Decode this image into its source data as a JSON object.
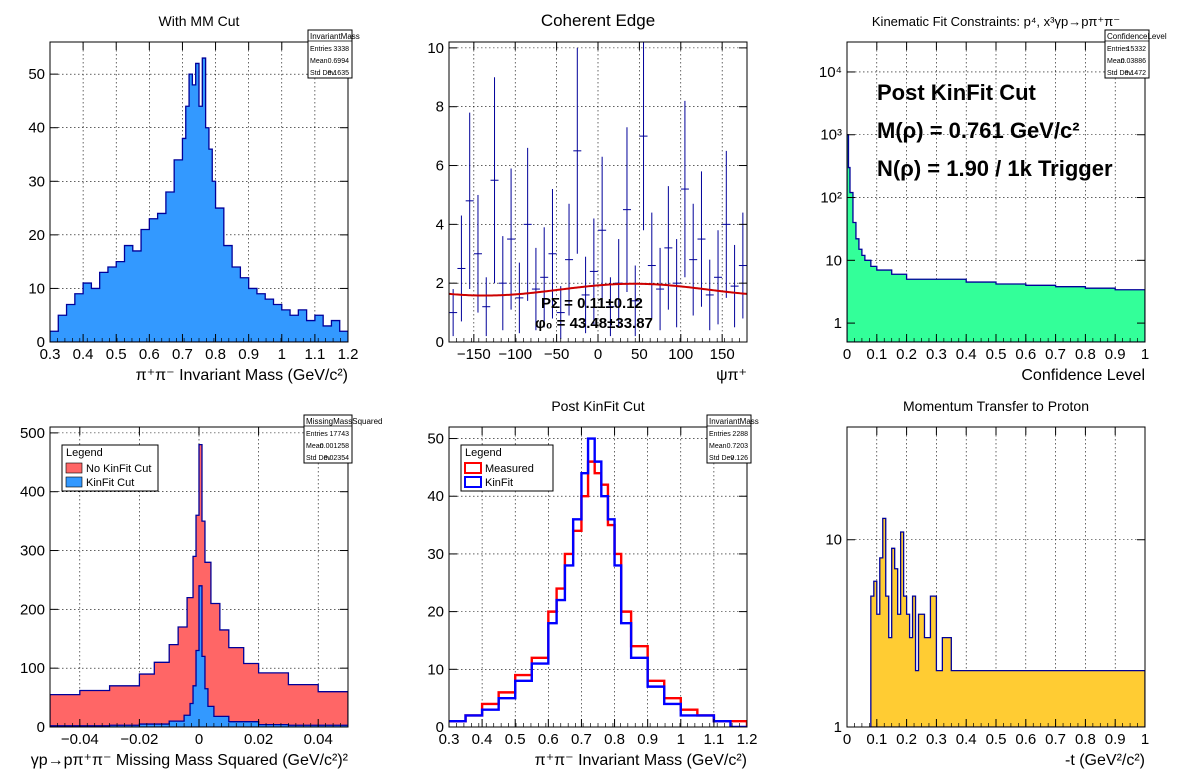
{
  "canvas": {
    "background": "#ffffff"
  },
  "chart_data": [
    {
      "id": "p1",
      "type": "bar",
      "title": "With MM Cut",
      "xlabel": "π⁺π⁻ Invariant Mass (GeV/c²)",
      "ylabel": "",
      "xlim": [
        0.3,
        1.2
      ],
      "ylim": [
        0,
        56
      ],
      "xticks": [
        "0.3",
        "0.4",
        "0.5",
        "0.6",
        "0.7",
        "0.8",
        "0.9",
        "1",
        "1.1",
        "1.2"
      ],
      "yticks": [
        "0",
        "10",
        "20",
        "30",
        "40",
        "50"
      ],
      "grid": true,
      "fill_color": "#3399ff",
      "line_color": "#000099",
      "series": [
        {
          "x": [
            0.3,
            0.325,
            0.35,
            0.375,
            0.4,
            0.425,
            0.45,
            0.475,
            0.5,
            0.525,
            0.55,
            0.575,
            0.6,
            0.625,
            0.65,
            0.675,
            0.7,
            0.71,
            0.72,
            0.73,
            0.74,
            0.75,
            0.76,
            0.77,
            0.78,
            0.79,
            0.8,
            0.825,
            0.85,
            0.875,
            0.9,
            0.925,
            0.95,
            0.975,
            1.0,
            1.025,
            1.05,
            1.075,
            1.1,
            1.125,
            1.15,
            1.175,
            1.2
          ],
          "y": [
            2,
            5,
            7,
            9,
            11,
            10,
            13,
            14,
            15,
            18,
            17,
            21,
            23,
            24,
            28,
            34,
            38,
            44,
            50,
            48,
            52,
            44,
            53,
            40,
            36,
            30,
            25,
            18,
            14,
            12,
            10,
            9,
            8,
            7,
            6,
            5,
            6,
            4,
            5,
            3,
            4,
            2,
            1
          ]
        }
      ],
      "stats": {
        "name": "InvariantMass",
        "entries_label": "Entries",
        "entries": "3338",
        "mean_label": "Mean",
        "mean": "0.6994",
        "std_label": "Std Dev",
        "std": "0.1635"
      }
    },
    {
      "id": "p2",
      "type": "scatter",
      "title": "Coherent Edge",
      "xlabel": "ψπ⁺",
      "ylabel": "",
      "xlim": [
        -180,
        180
      ],
      "ylim": [
        0,
        10.2
      ],
      "xticks": [
        "−150",
        "−100",
        "−50",
        "0",
        "50",
        "100",
        "150"
      ],
      "xtick_values": [
        -150,
        -100,
        -50,
        0,
        50,
        100,
        150
      ],
      "yticks": [
        "0",
        "2",
        "4",
        "6",
        "8",
        "10"
      ],
      "ytick_values": [
        0,
        2,
        4,
        6,
        8,
        10
      ],
      "grid": true,
      "marker_color": "#000099",
      "fit_color": "#cc0000",
      "fit": {
        "p0": 1.78,
        "amp": 0.2,
        "phase_deg": 43.48
      },
      "points": {
        "x": [
          -175,
          -165,
          -155,
          -145,
          -135,
          -125,
          -115,
          -105,
          -95,
          -85,
          -75,
          -65,
          -55,
          -45,
          -35,
          -25,
          -15,
          -5,
          5,
          15,
          25,
          35,
          45,
          55,
          65,
          75,
          85,
          95,
          105,
          115,
          125,
          135,
          145,
          155,
          165,
          175
        ],
        "y": [
          1.0,
          2.5,
          4.8,
          3.0,
          1.2,
          5.5,
          2.0,
          3.5,
          1.5,
          4.0,
          1.8,
          2.2,
          3.0,
          1.0,
          2.8,
          6.5,
          1.6,
          2.4,
          3.8,
          1.2,
          2.0,
          4.5,
          1.4,
          7.0,
          2.6,
          1.8,
          3.2,
          2.0,
          5.2,
          2.8,
          3.5,
          1.6,
          2.2,
          4.0,
          1.9,
          2.6
        ],
        "err": [
          0.8,
          1.8,
          3.0,
          2.0,
          1.0,
          3.5,
          1.6,
          2.4,
          1.2,
          2.6,
          1.4,
          1.7,
          2.2,
          0.9,
          1.9,
          3.5,
          1.3,
          1.8,
          2.5,
          1.0,
          1.5,
          2.8,
          1.2,
          3.2,
          1.8,
          1.4,
          2.1,
          1.5,
          3.0,
          1.9,
          2.3,
          1.2,
          1.6,
          2.5,
          1.4,
          1.8
        ]
      },
      "fit_text": [
        "PΣ = 0.11±0.12",
        "φ₀ = 43.48±33.87"
      ]
    },
    {
      "id": "p3",
      "type": "bar",
      "title": "Kinematic Fit Constraints: p⁴, x³γp→pπ⁺π⁻",
      "xlabel": "Confidence Level",
      "ylabel": "",
      "xlim": [
        0,
        1
      ],
      "ylim_log": [
        0.5,
        30000
      ],
      "log_y": true,
      "xticks": [
        "0",
        "0.1",
        "0.2",
        "0.3",
        "0.4",
        "0.5",
        "0.6",
        "0.7",
        "0.8",
        "0.9",
        "1"
      ],
      "yticks": [
        "1",
        "10",
        "10²",
        "10³",
        "10⁴"
      ],
      "ytick_values": [
        1,
        10,
        100,
        1000,
        10000
      ],
      "grid": true,
      "fill_color": "#33ff99",
      "line_color": "#000099",
      "series": [
        {
          "x": [
            0,
            0.005,
            0.01,
            0.02,
            0.03,
            0.04,
            0.05,
            0.06,
            0.08,
            0.1,
            0.15,
            0.2,
            0.3,
            0.4,
            0.5,
            0.6,
            0.7,
            0.8,
            0.9,
            1.0
          ],
          "y": [
            1000,
            300,
            120,
            40,
            22,
            15,
            12,
            10,
            8,
            7,
            6,
            5,
            5,
            4.5,
            4.2,
            4,
            3.8,
            3.6,
            3.4,
            3.2
          ]
        }
      ],
      "annotations": [
        "Post KinFit Cut",
        "M(ρ) = 0.761 GeV/c²",
        "N(ρ) = 1.90 / 1k Trigger"
      ],
      "stats": {
        "name": "ConfidenceLevel",
        "entries_label": "Entries",
        "entries": "15332",
        "mean_label": "Mean",
        "mean": "0.03886",
        "std_label": "Std Dev",
        "std": "0.1472"
      }
    },
    {
      "id": "p4",
      "type": "bar",
      "title": "",
      "xlabel": "γp→pπ⁺π⁻ Missing Mass Squared (GeV/c²)²",
      "ylabel": "",
      "xlim": [
        -0.05,
        0.05
      ],
      "ylim": [
        0,
        510
      ],
      "xticks": [
        "−0.04",
        "−0.02",
        "0",
        "0.02",
        "0.04"
      ],
      "xtick_values": [
        -0.04,
        -0.02,
        0,
        0.02,
        0.04
      ],
      "yticks": [
        "0",
        "100",
        "200",
        "300",
        "400",
        "500"
      ],
      "ytick_values": [
        0,
        100,
        200,
        300,
        400,
        500
      ],
      "grid": true,
      "legend_title": "Legend",
      "series": [
        {
          "name": "No KinFit Cut",
          "fill": "#ff6666",
          "line": "#000099",
          "x": [
            -0.05,
            -0.04,
            -0.03,
            -0.02,
            -0.015,
            -0.01,
            -0.007,
            -0.004,
            -0.002,
            -0.001,
            0,
            0.001,
            0.002,
            0.004,
            0.007,
            0.01,
            0.015,
            0.02,
            0.03,
            0.04,
            0.05
          ],
          "y": [
            55,
            62,
            70,
            90,
            110,
            140,
            170,
            220,
            290,
            360,
            480,
            350,
            280,
            210,
            165,
            135,
            108,
            92,
            72,
            60,
            50
          ]
        },
        {
          "name": "KinFit Cut",
          "fill": "#3399ff",
          "line": "#000099",
          "x": [
            -0.05,
            -0.03,
            -0.02,
            -0.01,
            -0.005,
            -0.003,
            -0.002,
            -0.001,
            0,
            0.001,
            0.002,
            0.003,
            0.005,
            0.01,
            0.02,
            0.03,
            0.05
          ],
          "y": [
            2,
            3,
            5,
            10,
            20,
            40,
            70,
            130,
            240,
            120,
            65,
            35,
            18,
            9,
            4,
            3,
            2
          ]
        }
      ],
      "stats": {
        "name": "MissingMassSquared",
        "entries_label": "Entries",
        "entries": "17743",
        "mean_label": "Mean",
        "mean": "-0.001258",
        "std_label": "Std Dev",
        "std": "0.02354"
      }
    },
    {
      "id": "p5",
      "type": "line",
      "title": "Post KinFit Cut",
      "xlabel": "π⁺π⁻ Invariant Mass (GeV/c²)",
      "ylabel": "",
      "xlim": [
        0.3,
        1.2
      ],
      "ylim": [
        0,
        52
      ],
      "xticks": [
        "0.3",
        "0.4",
        "0.5",
        "0.6",
        "0.7",
        "0.8",
        "0.9",
        "1",
        "1.1",
        "1.2"
      ],
      "yticks": [
        "0",
        "10",
        "20",
        "30",
        "40",
        "50"
      ],
      "grid": true,
      "legend_title": "Legend",
      "series": [
        {
          "name": "Measured",
          "color": "#ff0000",
          "x": [
            0.3,
            0.35,
            0.4,
            0.45,
            0.5,
            0.55,
            0.6,
            0.625,
            0.65,
            0.675,
            0.7,
            0.72,
            0.74,
            0.76,
            0.78,
            0.8,
            0.82,
            0.85,
            0.9,
            0.95,
            1.0,
            1.05,
            1.1,
            1.15,
            1.2
          ],
          "y": [
            1,
            2,
            4,
            6,
            9,
            12,
            20,
            24,
            30,
            34,
            40,
            46,
            44,
            42,
            35,
            30,
            20,
            14,
            8,
            5,
            3,
            2,
            1,
            1,
            0
          ]
        },
        {
          "name": "KinFit",
          "color": "#0000ff",
          "x": [
            0.3,
            0.35,
            0.4,
            0.45,
            0.5,
            0.55,
            0.6,
            0.625,
            0.65,
            0.675,
            0.7,
            0.72,
            0.74,
            0.76,
            0.78,
            0.8,
            0.82,
            0.85,
            0.9,
            0.95,
            1.0,
            1.05,
            1.1,
            1.15,
            1.2
          ],
          "y": [
            1,
            2,
            3,
            5,
            8,
            11,
            18,
            22,
            28,
            36,
            44,
            50,
            46,
            40,
            36,
            28,
            18,
            12,
            7,
            4,
            2,
            2,
            1,
            0,
            0
          ]
        }
      ],
      "stats": {
        "name": "InvariantMass",
        "entries_label": "Entries",
        "entries": "2288",
        "mean_label": "Mean",
        "mean": "0.7203",
        "std_label": "Std Dev",
        "std": "0.126"
      }
    },
    {
      "id": "p6",
      "type": "bar",
      "title": "Momentum Transfer to Proton",
      "xlabel": "-t (GeV²/c²)",
      "ylabel": "",
      "xlim": [
        0,
        1
      ],
      "ylim_log": [
        1,
        40
      ],
      "log_y": true,
      "xticks": [
        "0",
        "0.1",
        "0.2",
        "0.3",
        "0.4",
        "0.5",
        "0.6",
        "0.7",
        "0.8",
        "0.9",
        "1"
      ],
      "yticks": [
        "1",
        "10"
      ],
      "ytick_values": [
        1,
        10
      ],
      "grid": true,
      "fill_color": "#ffcc33",
      "line_color": "#000099",
      "series": [
        {
          "x": [
            0.08,
            0.09,
            0.1,
            0.11,
            0.12,
            0.13,
            0.14,
            0.15,
            0.16,
            0.17,
            0.18,
            0.19,
            0.2,
            0.21,
            0.22,
            0.23,
            0.24,
            0.26,
            0.28,
            0.3,
            0.32,
            0.35,
            0.4,
            0.57
          ],
          "y": [
            5,
            6,
            4,
            8,
            13,
            5,
            3,
            9,
            7,
            4,
            11,
            5,
            4,
            3,
            5,
            2,
            4,
            3,
            5,
            2,
            3,
            2,
            2,
            2
          ]
        }
      ]
    }
  ]
}
